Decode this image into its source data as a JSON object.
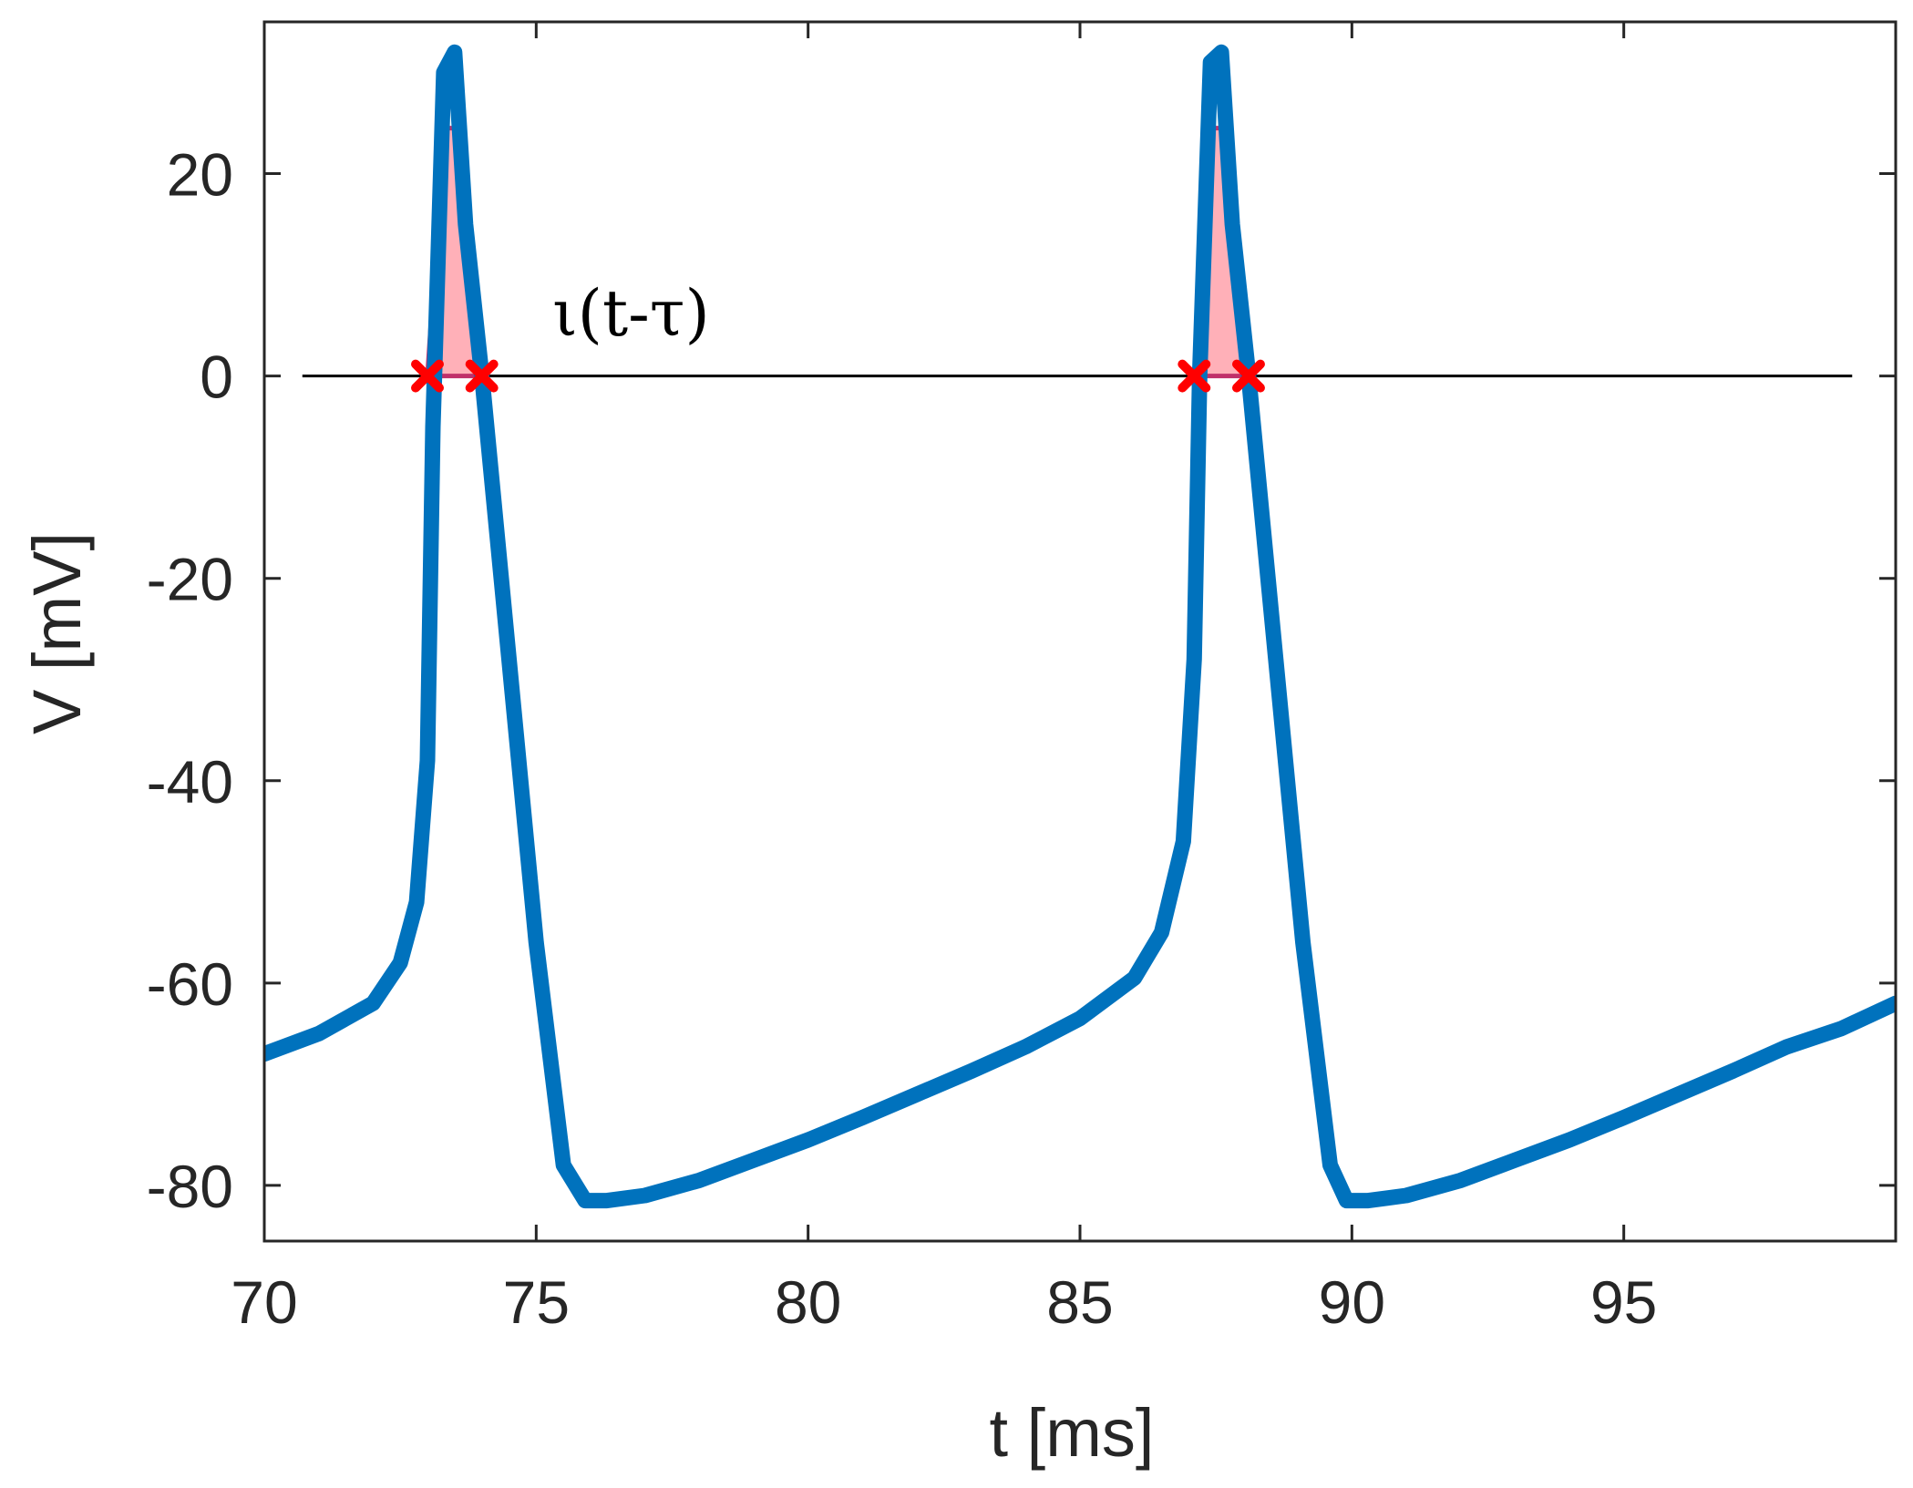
{
  "chart_data": {
    "type": "line",
    "xlabel": "t [ms]",
    "ylabel": "V [mV]",
    "xlim": [
      70,
      100
    ],
    "ylim": [
      -85.5,
      35
    ],
    "xticks": [
      70,
      75,
      80,
      85,
      90,
      95
    ],
    "yticks": [
      -80,
      -60,
      -40,
      -20,
      0,
      20
    ],
    "grid": false,
    "series": [
      {
        "color": "#0072BD",
        "x": [
          70,
          71,
          72,
          72.5,
          72.8,
          73.0,
          73.1,
          73.3,
          73.5,
          73.7,
          74.0,
          74.5,
          75.0,
          75.5,
          75.9,
          76.3,
          77,
          78,
          79,
          80,
          81,
          82,
          83,
          84,
          85,
          86,
          86.5,
          86.9,
          87.1,
          87.2,
          87.4,
          87.6,
          87.8,
          88.1,
          88.6,
          89.1,
          89.6,
          89.9,
          90.3,
          91,
          92,
          93,
          94,
          95,
          96,
          97,
          98,
          99,
          100
        ],
        "y": [
          -67,
          -65,
          -62,
          -58,
          -52,
          -38,
          -5,
          30,
          32,
          15,
          0,
          -28,
          -56,
          -78,
          -81.5,
          -81.5,
          -81,
          -79.5,
          -77.5,
          -75.5,
          -73.3,
          -71,
          -68.7,
          -66.3,
          -63.5,
          -59.5,
          -55,
          -46,
          -28,
          0,
          31,
          32,
          15,
          0,
          -28,
          -56,
          -78,
          -81.5,
          -81.5,
          -81,
          -79.5,
          -77.5,
          -75.5,
          -73.3,
          -71,
          -68.7,
          -66.3,
          -64.5,
          -62
        ]
      }
    ],
    "reference_line": {
      "y": 0,
      "color": "#000000"
    },
    "shaded_regions": [
      {
        "x": [
          73.0,
          73.3,
          73.6,
          74.0
        ],
        "y": [
          0,
          24.5,
          24.5,
          0
        ],
        "color": "#FFB0B8"
      },
      {
        "x": [
          87.1,
          87.4,
          87.7,
          88.1
        ],
        "y": [
          0,
          24.5,
          24.5,
          0
        ],
        "color": "#FFB0B8"
      }
    ],
    "markers": {
      "symbol": "x",
      "color": "#FF0000",
      "points": [
        [
          73.0,
          0
        ],
        [
          74.0,
          0
        ],
        [
          87.1,
          0
        ],
        [
          88.1,
          0
        ]
      ]
    },
    "annotation": {
      "text": "ι(t-τ)",
      "x": 75.3,
      "y": 4
    }
  }
}
